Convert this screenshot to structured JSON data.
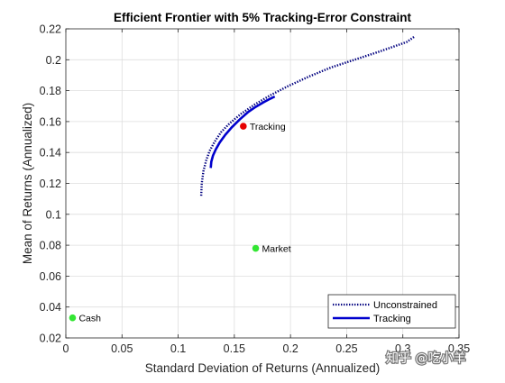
{
  "chart_data": {
    "type": "line",
    "title": "Efficient Frontier with 5% Tracking-Error Constraint",
    "xlabel": "Standard Deviation of Returns (Annualized)",
    "ylabel": "Mean of Returns (Annualized)",
    "xlim": [
      0,
      0.35
    ],
    "ylim": [
      0.02,
      0.22
    ],
    "xticks": [
      0,
      0.05,
      0.1,
      0.15,
      0.2,
      0.25,
      0.3,
      0.35
    ],
    "yticks": [
      0.02,
      0.04,
      0.06,
      0.08,
      0.1,
      0.12,
      0.14,
      0.16,
      0.18,
      0.2,
      0.22
    ],
    "xtick_labels": [
      "0",
      "0.05",
      "0.1",
      "0.15",
      "0.2",
      "0.25",
      "0.3",
      "0.35"
    ],
    "ytick_labels": [
      "0.02",
      "0.04",
      "0.06",
      "0.08",
      "0.1",
      "0.12",
      "0.14",
      "0.16",
      "0.18",
      "0.2",
      "0.22"
    ],
    "grid": true,
    "legend_position": "bottom-right",
    "series": [
      {
        "name": "Unconstrained",
        "style": "dotted",
        "color": "#00007f",
        "x": [
          0.1205,
          0.121,
          0.1225,
          0.125,
          0.128,
          0.1325,
          0.138,
          0.146,
          0.156,
          0.168,
          0.182,
          0.198,
          0.216,
          0.236,
          0.257,
          0.28,
          0.3035,
          0.31
        ],
        "y": [
          0.112,
          0.12,
          0.128,
          0.135,
          0.141,
          0.147,
          0.153,
          0.159,
          0.165,
          0.171,
          0.177,
          0.183,
          0.189,
          0.195,
          0.2,
          0.2055,
          0.2115,
          0.2148
        ]
      },
      {
        "name": "Tracking",
        "style": "solid",
        "color": "#0000cd",
        "x": [
          0.129,
          0.1295,
          0.131,
          0.1335,
          0.137,
          0.142,
          0.148,
          0.155,
          0.162,
          0.169,
          0.176,
          0.182,
          0.186
        ],
        "y": [
          0.13,
          0.134,
          0.138,
          0.142,
          0.1465,
          0.1515,
          0.1565,
          0.1615,
          0.166,
          0.1695,
          0.1725,
          0.1748,
          0.1762
        ]
      }
    ],
    "points": [
      {
        "label": "Tracking",
        "x": 0.158,
        "y": 0.157,
        "color": "#e60000"
      },
      {
        "label": "Market",
        "x": 0.169,
        "y": 0.078,
        "color": "#33e633"
      },
      {
        "label": "Cash",
        "x": 0.006,
        "y": 0.033,
        "color": "#33e633"
      }
    ]
  },
  "watermark": {
    "text": "知乎 @吃小羊"
  }
}
